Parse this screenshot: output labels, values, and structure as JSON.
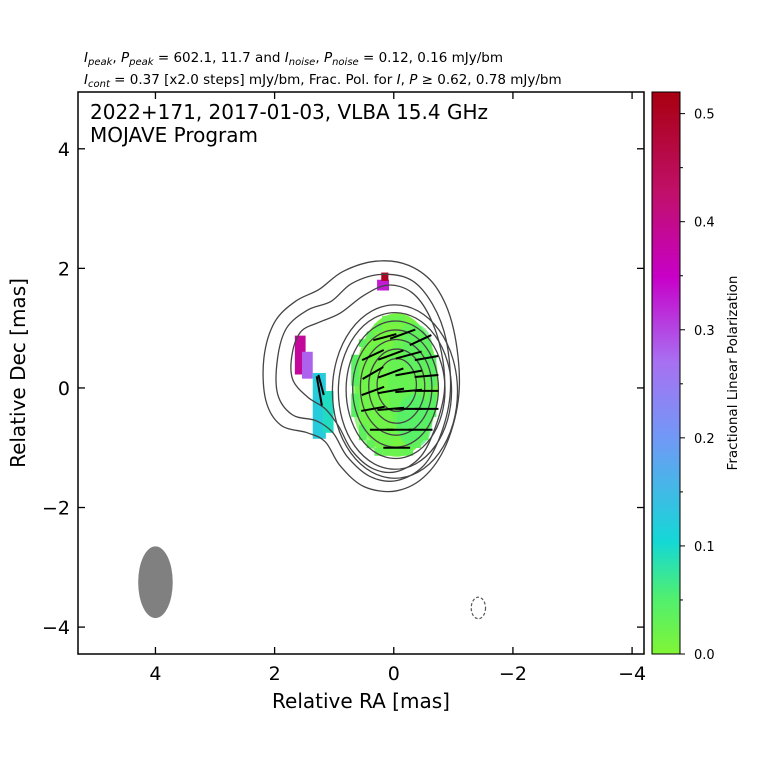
{
  "header": {
    "line1": "I_peak, P_peak = 602.1, 11.7 and I_noise, P_noise = 0.12, 0.16 mJy/bm",
    "line2": "I_cont = 0.37 [x2.0 steps] mJy/bm, Frac. Pol. for I, P ≥ 0.62, 0.78 mJy/bm"
  },
  "chart_data": {
    "type": "heatmap",
    "title_line1": "2022+171, 2017-01-03, VLBA 15.4 GHz",
    "title_line2": "MOJAVE Program",
    "xlabel": "Relative RA [mas]",
    "ylabel": "Relative Dec [mas]",
    "xlim": [
      5.3,
      -4.2
    ],
    "ylim": [
      -4.45,
      4.95
    ],
    "x_ticks": [
      4,
      2,
      0,
      -2,
      -4
    ],
    "x_tick_labels": [
      "4",
      "2",
      "0",
      "−2",
      "−4"
    ],
    "y_ticks": [
      4,
      2,
      0,
      -2,
      -4
    ],
    "y_tick_labels": [
      "4",
      "2",
      "0",
      "−2",
      "−4"
    ],
    "colorbar": {
      "label": "Fractional Linear Polarization",
      "range": [
        0.0,
        0.52
      ],
      "ticks": [
        0.0,
        0.1,
        0.2,
        0.3,
        0.4,
        0.5
      ],
      "tick_labels": [
        "0.0",
        "0.1",
        "0.2",
        "0.3",
        "0.4",
        "0.5"
      ],
      "colors": [
        "#80f535",
        "#14d8d6",
        "#6f9af6",
        "#c800c8",
        "#a80010"
      ]
    },
    "contours": {
      "base_mJy": 0.37,
      "step_factor": 2.0,
      "peak_mJy": 602.1,
      "levels": [
        {
          "cx": -0.05,
          "cy": 0.05,
          "rx": 0.33,
          "ry": 0.44
        },
        {
          "cx": -0.05,
          "cy": 0.03,
          "rx": 0.47,
          "ry": 0.62
        },
        {
          "cx": -0.04,
          "cy": 0.01,
          "rx": 0.6,
          "ry": 0.8
        },
        {
          "cx": -0.03,
          "cy": -0.01,
          "rx": 0.72,
          "ry": 0.98
        },
        {
          "cx": -0.03,
          "cy": -0.03,
          "rx": 0.83,
          "ry": 1.15
        },
        {
          "cx": -0.02,
          "cy": -0.05,
          "rx": 0.95,
          "ry": 1.31
        },
        {
          "cx": -0.02,
          "cy": -0.06,
          "rx": 1.05,
          "ry": 1.45
        }
      ],
      "outer_isophotes": [
        [
          [
            -0.85,
            -0.05
          ],
          [
            -0.7,
            -0.65
          ],
          [
            -0.45,
            -1.15
          ],
          [
            -0.05,
            -1.4
          ],
          [
            0.35,
            -1.35
          ],
          [
            0.7,
            -1.05
          ],
          [
            0.92,
            -0.65
          ],
          [
            1.15,
            -0.35
          ],
          [
            1.45,
            -0.15
          ],
          [
            1.7,
            0.15
          ],
          [
            1.7,
            0.6
          ],
          [
            1.55,
            0.95
          ],
          [
            1.25,
            1.1
          ],
          [
            0.9,
            1.25
          ],
          [
            0.5,
            1.55
          ],
          [
            0.1,
            1.72
          ],
          [
            -0.3,
            1.6
          ],
          [
            -0.6,
            1.2
          ],
          [
            -0.8,
            0.6
          ]
        ],
        [
          [
            -0.95,
            -0.05
          ],
          [
            -0.8,
            -0.75
          ],
          [
            -0.5,
            -1.3
          ],
          [
            -0.05,
            -1.55
          ],
          [
            0.4,
            -1.48
          ],
          [
            0.78,
            -1.15
          ],
          [
            1.02,
            -0.75
          ],
          [
            1.3,
            -0.55
          ],
          [
            1.7,
            -0.45
          ],
          [
            1.95,
            -0.1
          ],
          [
            1.95,
            0.5
          ],
          [
            1.8,
            1.0
          ],
          [
            1.45,
            1.3
          ],
          [
            1.05,
            1.45
          ],
          [
            0.7,
            1.75
          ],
          [
            0.2,
            1.9
          ],
          [
            -0.3,
            1.8
          ],
          [
            -0.65,
            1.4
          ],
          [
            -0.88,
            0.8
          ]
        ],
        [
          [
            -1.1,
            0.0
          ],
          [
            -0.92,
            -0.85
          ],
          [
            -0.55,
            -1.45
          ],
          [
            -0.05,
            -1.72
          ],
          [
            0.5,
            -1.65
          ],
          [
            0.9,
            -1.3
          ],
          [
            1.15,
            -0.9
          ],
          [
            1.45,
            -0.75
          ],
          [
            1.9,
            -0.62
          ],
          [
            2.15,
            -0.2
          ],
          [
            2.18,
            0.5
          ],
          [
            2.0,
            1.1
          ],
          [
            1.65,
            1.45
          ],
          [
            1.25,
            1.65
          ],
          [
            0.85,
            1.95
          ],
          [
            0.3,
            2.12
          ],
          [
            -0.25,
            2.05
          ],
          [
            -0.7,
            1.7
          ],
          [
            -1.0,
            1.0
          ]
        ]
      ]
    },
    "polarization_patches": [
      {
        "cx": -0.05,
        "cy": 0.05,
        "rx": 0.7,
        "ry": 1.2,
        "frac": 0.01
      },
      {
        "cx": 0.25,
        "cy": -0.15,
        "rx": 0.45,
        "ry": 0.9,
        "frac": 0.02
      },
      {
        "cx": -0.3,
        "cy": 0.1,
        "rx": 0.4,
        "ry": 1.0,
        "frac": 0.03
      },
      {
        "cx": -0.35,
        "cy": -0.55,
        "rx": 0.3,
        "ry": 0.45,
        "frac": 0.05
      },
      {
        "cx": -0.4,
        "cy": 0.65,
        "rx": 0.25,
        "ry": 0.4,
        "frac": 0.04
      }
    ],
    "polarization_pixels": [
      {
        "x": 1.25,
        "y": -0.3,
        "w": 0.22,
        "h": 1.1,
        "frac": 0.12
      },
      {
        "x": 1.1,
        "y": -0.4,
        "w": 0.18,
        "h": 0.7,
        "frac": 0.09
      },
      {
        "x": 1.57,
        "y": 0.55,
        "w": 0.18,
        "h": 0.65,
        "frac": 0.39
      },
      {
        "x": 1.45,
        "y": 0.38,
        "w": 0.18,
        "h": 0.45,
        "frac": 0.28
      },
      {
        "x": 0.18,
        "y": 1.72,
        "w": 0.2,
        "h": 0.18,
        "frac": 0.33
      },
      {
        "x": 0.15,
        "y": 1.86,
        "w": 0.12,
        "h": 0.14,
        "frac": 0.5
      }
    ],
    "evpa_vectors": [
      {
        "x": 0.15,
        "y": 0.85,
        "len": 0.4,
        "ang": -15
      },
      {
        "x": -0.15,
        "y": 0.9,
        "len": 0.45,
        "ang": -20
      },
      {
        "x": -0.45,
        "y": 0.8,
        "len": 0.4,
        "ang": -25
      },
      {
        "x": 0.35,
        "y": 0.55,
        "len": 0.4,
        "ang": -25
      },
      {
        "x": 0.05,
        "y": 0.55,
        "len": 0.45,
        "ang": -20
      },
      {
        "x": -0.25,
        "y": 0.55,
        "len": 0.45,
        "ang": -15
      },
      {
        "x": -0.55,
        "y": 0.5,
        "len": 0.4,
        "ang": -10
      },
      {
        "x": 0.35,
        "y": 0.25,
        "len": 0.4,
        "ang": -30
      },
      {
        "x": 0.05,
        "y": 0.25,
        "len": 0.45,
        "ang": -20
      },
      {
        "x": -0.25,
        "y": 0.25,
        "len": 0.45,
        "ang": -10
      },
      {
        "x": -0.55,
        "y": 0.2,
        "len": 0.4,
        "ang": -5
      },
      {
        "x": 0.35,
        "y": -0.05,
        "len": 0.4,
        "ang": -20
      },
      {
        "x": 0.05,
        "y": -0.05,
        "len": 0.45,
        "ang": -10
      },
      {
        "x": -0.25,
        "y": -0.05,
        "len": 0.45,
        "ang": -5
      },
      {
        "x": -0.55,
        "y": -0.05,
        "len": 0.4,
        "ang": 0
      },
      {
        "x": 0.35,
        "y": -0.35,
        "len": 0.4,
        "ang": -10
      },
      {
        "x": 0.05,
        "y": -0.35,
        "len": 0.45,
        "ang": -5
      },
      {
        "x": -0.25,
        "y": -0.35,
        "len": 0.45,
        "ang": 0
      },
      {
        "x": -0.55,
        "y": -0.35,
        "len": 0.4,
        "ang": 0
      },
      {
        "x": 0.2,
        "y": -0.7,
        "len": 0.4,
        "ang": 0
      },
      {
        "x": -0.1,
        "y": -0.7,
        "len": 0.45,
        "ang": 0
      },
      {
        "x": -0.45,
        "y": -0.7,
        "len": 0.4,
        "ang": 0
      },
      {
        "x": -0.05,
        "y": -1.0,
        "len": 0.45,
        "ang": 0
      },
      {
        "x": 1.25,
        "y": -0.05,
        "len": 0.5,
        "ang": 80
      },
      {
        "x": 1.22,
        "y": 0.05,
        "len": 0.35,
        "ang": 75
      }
    ],
    "beam": {
      "x": 4.0,
      "y": -3.25,
      "major_mas": 1.2,
      "minor_mas": 0.58,
      "pa_deg": 0,
      "color": "#808080"
    },
    "noise_marker": {
      "x": -1.42,
      "y": -3.68,
      "rx": 0.12,
      "ry": 0.18
    }
  }
}
